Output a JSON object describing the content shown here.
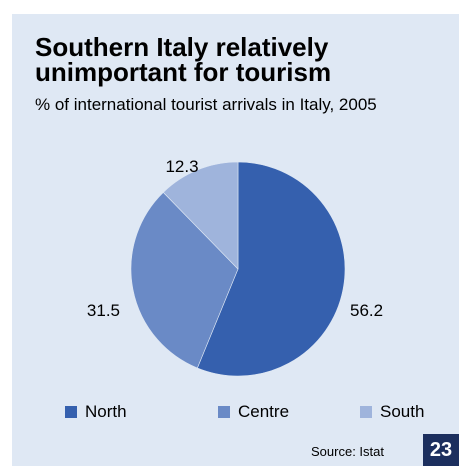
{
  "chart_data": {
    "type": "pie",
    "title": "Southern Italy relatively unimportant for tourism",
    "subtitle": "% of international tourist arrivals in Italy, 2005",
    "categories": [
      "North",
      "Centre",
      "South"
    ],
    "values": [
      56.2,
      31.5,
      12.3
    ],
    "value_labels": [
      "56.2",
      "31.5",
      "12.3"
    ],
    "colors": [
      "#3560ae",
      "#6a8ac6",
      "#9fb4dc"
    ],
    "legend": "bottom",
    "source": "Source: Istat"
  },
  "page_number": "23"
}
